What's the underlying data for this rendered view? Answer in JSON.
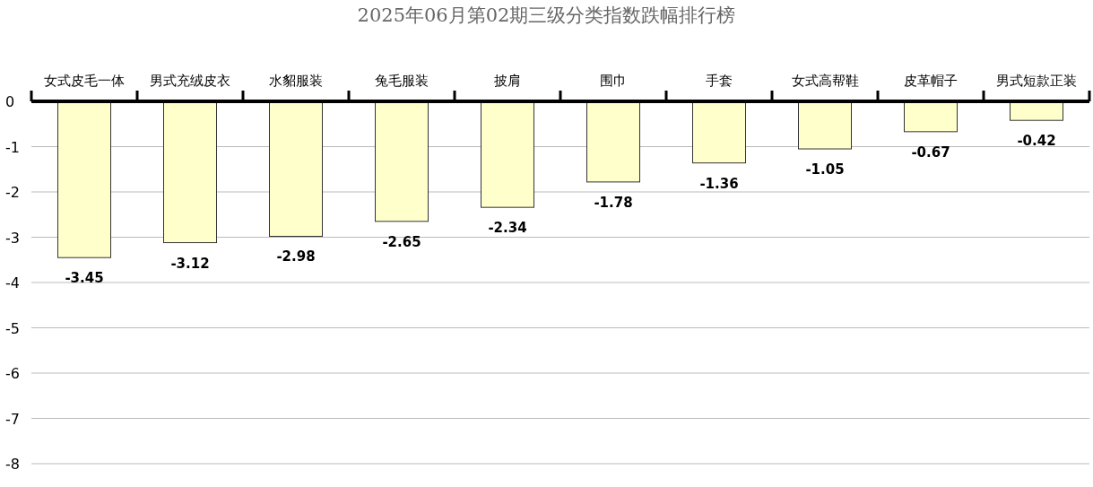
{
  "chart_data": {
    "type": "bar",
    "title": "2025年06月第02期三级分类指数跌幅排行榜",
    "categories": [
      "女式皮毛一体",
      "男式充绒皮衣",
      "水貂服装",
      "兔毛服装",
      "披肩",
      "围巾",
      "手套",
      "女式高帮鞋",
      "皮革帽子",
      "男式短款正装"
    ],
    "values": [
      -3.45,
      -3.12,
      -2.98,
      -2.65,
      -2.34,
      -1.78,
      -1.36,
      -1.05,
      -0.67,
      -0.42
    ],
    "color": "#ffffcc",
    "ylim": [
      -8,
      0
    ],
    "yticks": [
      0,
      -1,
      -2,
      -3,
      -4,
      -5,
      -6,
      -7,
      -8
    ],
    "grid": "y",
    "data_labels": true
  }
}
